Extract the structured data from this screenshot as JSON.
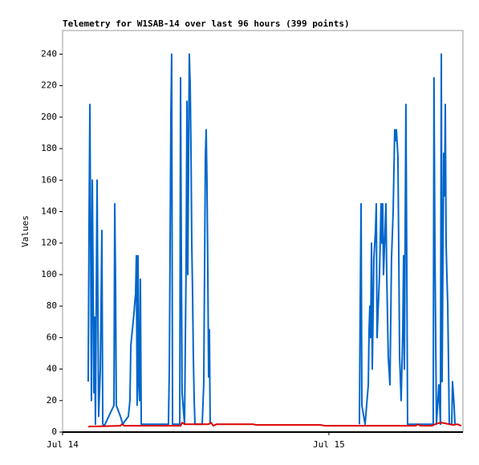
{
  "chart_data": {
    "type": "line",
    "title": "Telemetry for W1SAB-14 over last 96 hours (399 points)",
    "y_label": "Values",
    "xlim": [
      0,
      36.08
    ],
    "xticks": [
      {
        "value": 0,
        "label": "Jul 14"
      },
      {
        "value": 24,
        "label": "Jul 15"
      }
    ],
    "ylim": [
      0,
      255
    ],
    "yticks": [
      0,
      20,
      40,
      60,
      80,
      100,
      120,
      140,
      160,
      180,
      200,
      220,
      240
    ],
    "series": [
      {
        "color": "#0066cc",
        "x": [
          2.31,
          2.39,
          2.46,
          2.53,
          2.6,
          2.68,
          2.75,
          2.82,
          2.89,
          2.96,
          3.11,
          3.18,
          3.25,
          3.4,
          3.47,
          3.54,
          3.62,
          3.76,
          4.63,
          4.7,
          4.77,
          4.84,
          5.21,
          5.42,
          5.93,
          6.07,
          6.15,
          6.29,
          6.43,
          6.58,
          6.65,
          6.72,
          6.8,
          6.87,
          6.94,
          7.01,
          7.09,
          9.54,
          9.62,
          9.69,
          9.76,
          9.83,
          9.91,
          10.56,
          10.63,
          10.7,
          10.77,
          10.99,
          11.13,
          11.21,
          11.28,
          11.42,
          11.5,
          11.57,
          11.64,
          11.71,
          11.78,
          11.86,
          11.93,
          12.58,
          12.72,
          12.87,
          12.94,
          13.01,
          13.09,
          13.16,
          13.23,
          13.3,
          20,
          26.75,
          26.82,
          26.9,
          26.97,
          27.26,
          27.55,
          27.62,
          27.69,
          27.76,
          27.84,
          27.91,
          28.05,
          28.2,
          28.27,
          28.34,
          28.56,
          28.7,
          28.78,
          28.85,
          28.92,
          29.06,
          29.14,
          29.21,
          29.35,
          29.5,
          29.64,
          29.79,
          29.93,
          30.0,
          30.08,
          30.22,
          30.29,
          30.37,
          30.51,
          30.66,
          30.73,
          30.8,
          30.94,
          31.02,
          31.09,
          33.4,
          33.47,
          33.55,
          33.69,
          33.91,
          34.05,
          34.13,
          34.2,
          34.34,
          34.42,
          34.49,
          34.56,
          34.63,
          34.71,
          34.85,
          35.07,
          35.14,
          35.28,
          35.36
        ],
        "values": [
          32,
          137,
          208,
          120,
          20,
          160,
          97,
          25,
          73,
          5,
          160,
          80,
          10,
          40,
          80,
          128,
          5,
          4,
          17,
          145,
          97,
          17,
          10,
          5,
          10,
          20,
          55,
          65,
          75,
          88,
          112,
          17,
          112,
          30,
          20,
          97,
          5,
          5,
          40,
          120,
          200,
          240,
          5,
          5,
          225,
          112,
          25,
          5,
          105,
          210,
          100,
          240,
          220,
          180,
          120,
          90,
          50,
          20,
          5,
          5,
          30,
          175,
          192,
          160,
          100,
          35,
          65,
          5,
          null,
          5,
          80,
          145,
          17,
          5,
          30,
          65,
          80,
          60,
          120,
          40,
          110,
          128,
          145,
          60,
          100,
          145,
          120,
          145,
          100,
          128,
          145,
          100,
          48,
          30,
          110,
          140,
          192,
          185,
          192,
          175,
          120,
          48,
          20,
          65,
          112,
          40,
          208,
          105,
          5,
          5,
          225,
          120,
          5,
          30,
          5,
          240,
          32,
          177,
          150,
          208,
          120,
          100,
          80,
          5,
          5,
          32,
          17,
          5
        ]
      },
      {
        "color": "#dd0000",
        "x": [
          2.31,
          5.21,
          5.35,
          5.57,
          10.63,
          10.77,
          10.99,
          13.16,
          13.38,
          13.59,
          13.88,
          17.14,
          17.5,
          23.28,
          23.64,
          31.81,
          32.03,
          32.25,
          33.26,
          33.76,
          34.13,
          34.85,
          35.21,
          35.57,
          35.93
        ],
        "values": [
          3.5,
          4,
          5,
          4,
          4,
          6,
          5,
          5,
          6,
          4,
          5,
          5,
          4.5,
          4.5,
          4,
          4,
          5,
          4,
          4,
          5.5,
          6,
          5,
          4.5,
          5,
          4
        ]
      }
    ]
  }
}
